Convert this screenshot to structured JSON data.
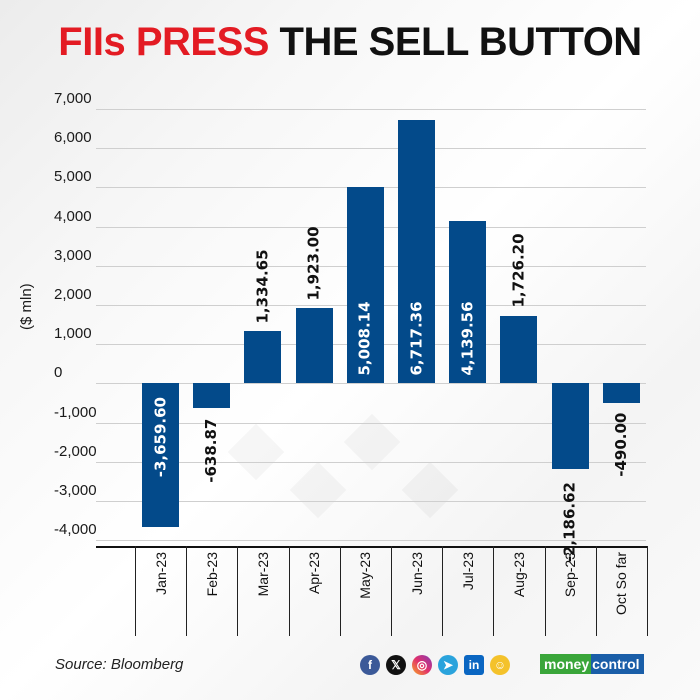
{
  "title": {
    "highlight": "FIIs PRESS",
    "rest": "THE SELL BUTTON"
  },
  "footer": {
    "source": "Source: Bloomberg",
    "social_icons": [
      "facebook-icon",
      "x-icon",
      "instagram-icon",
      "telegram-icon",
      "linkedin-icon",
      "koo-icon"
    ],
    "brand": {
      "part1": "money",
      "part2": "control"
    }
  },
  "colors": {
    "bar": "#034a8a",
    "title_red": "#e31b23",
    "title_black": "#111111"
  },
  "chart_data": {
    "type": "bar",
    "title": "FIIs PRESS THE SELL BUTTON",
    "xlabel": "",
    "ylabel": "($ mln)",
    "ylim": [
      -4000,
      7000
    ],
    "yticks": [
      "7,000",
      "6,000",
      "5,000",
      "4,000",
      "3,000",
      "2,000",
      "1,000",
      "0",
      "-1,000",
      "-2,000",
      "-3,000",
      "-4,000"
    ],
    "grid": true,
    "legend": null,
    "categories": [
      "Jan-23",
      "Feb-23",
      "Mar-23",
      "Apr-23",
      "May-23",
      "Jun-23",
      "Jul-23",
      "Aug-23",
      "Sep-23",
      "Oct So far"
    ],
    "values": [
      -3659.6,
      -638.87,
      1334.65,
      1923.0,
      5008.14,
      6717.36,
      4139.56,
      1726.2,
      -2186.62,
      -490.0
    ],
    "value_labels": [
      "-3,659.60",
      "-638.87",
      "1,334.65",
      "1,923.00",
      "5,008.14",
      "6,717.36",
      "4,139.56",
      "1,726.20",
      "-2,186.62",
      "-490.00"
    ],
    "source": "Bloomberg"
  }
}
